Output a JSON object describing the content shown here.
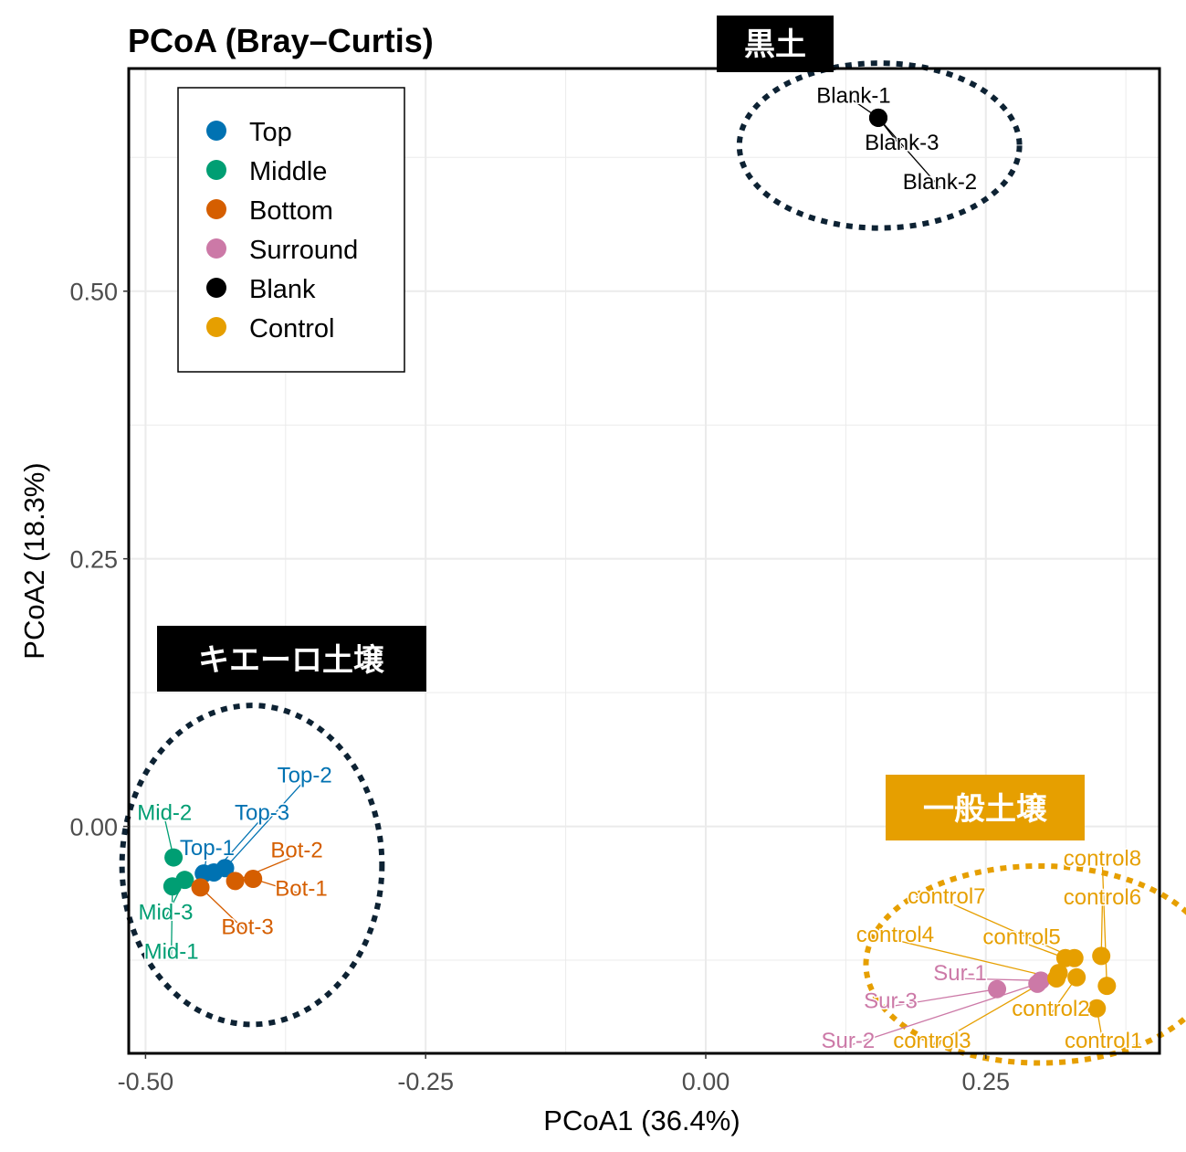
{
  "chart_data": {
    "type": "scatter",
    "title": "PCoA (Bray–Curtis)",
    "xlabel": "PCoA1 (36.4%)",
    "ylabel": "PCoA2 (18.3%)",
    "xlim": [
      -0.515,
      0.405
    ],
    "ylim": [
      -0.212,
      0.708
    ],
    "xticks": [
      -0.5,
      -0.25,
      0.0,
      0.25
    ],
    "xtick_labels": [
      "-0.50",
      "-0.25",
      "0.00",
      "0.25"
    ],
    "yticks": [
      0.0,
      0.25,
      0.5
    ],
    "ytick_labels": [
      "0.00",
      "0.25",
      "0.50"
    ],
    "grid": true,
    "legend": {
      "placement": "top-left",
      "entries": [
        {
          "name": "Top",
          "color": "#0072B2"
        },
        {
          "name": "Middle",
          "color": "#009E73"
        },
        {
          "name": "Bottom",
          "color": "#D55E00"
        },
        {
          "name": "Surround",
          "color": "#CC79A7"
        },
        {
          "name": "Blank",
          "color": "#000000"
        },
        {
          "name": "Control",
          "color": "#E69F00"
        }
      ]
    },
    "series": [
      {
        "name": "Top",
        "color": "#0072B2",
        "points": [
          {
            "label": "Top-1",
            "x": -0.448,
            "y": -0.044,
            "lx": -0.445,
            "ly": -0.02
          },
          {
            "label": "Top-2",
            "x": -0.429,
            "y": -0.039,
            "lx": -0.358,
            "ly": 0.048
          },
          {
            "label": "Top-3",
            "x": -0.439,
            "y": -0.043,
            "lx": -0.396,
            "ly": 0.013
          }
        ]
      },
      {
        "name": "Middle",
        "color": "#009E73",
        "points": [
          {
            "label": "Mid-1",
            "x": -0.476,
            "y": -0.056,
            "lx": -0.477,
            "ly": -0.117
          },
          {
            "label": "Mid-2",
            "x": -0.475,
            "y": -0.029,
            "lx": -0.483,
            "ly": 0.013
          },
          {
            "label": "Mid-3",
            "x": -0.465,
            "y": -0.05,
            "lx": -0.482,
            "ly": -0.08
          }
        ]
      },
      {
        "name": "Bottom",
        "color": "#D55E00",
        "points": [
          {
            "label": "Bot-1",
            "x": -0.404,
            "y": -0.049,
            "lx": -0.361,
            "ly": -0.058
          },
          {
            "label": "Bot-2",
            "x": -0.42,
            "y": -0.051,
            "lx": -0.365,
            "ly": -0.022
          },
          {
            "label": "Bot-3",
            "x": -0.451,
            "y": -0.057,
            "lx": -0.409,
            "ly": -0.094
          }
        ]
      },
      {
        "name": "Surround",
        "color": "#CC79A7",
        "points": [
          {
            "label": "Sur-1",
            "x": 0.299,
            "y": -0.144,
            "lx": 0.227,
            "ly": -0.137
          },
          {
            "label": "Sur-2",
            "x": 0.296,
            "y": -0.147,
            "lx": 0.127,
            "ly": -0.2
          },
          {
            "label": "Sur-3",
            "x": 0.26,
            "y": -0.152,
            "lx": 0.165,
            "ly": -0.163
          }
        ]
      },
      {
        "name": "Blank",
        "color": "#000000",
        "points": [
          {
            "label": "Blank-1",
            "x": 0.154,
            "y": 0.662,
            "lx": 0.132,
            "ly": 0.683
          },
          {
            "label": "Blank-2",
            "x": 0.154,
            "y": 0.662,
            "lx": 0.209,
            "ly": 0.602
          },
          {
            "label": "Blank-3",
            "x": 0.154,
            "y": 0.662,
            "lx": 0.175,
            "ly": 0.639
          }
        ]
      },
      {
        "name": "Control",
        "color": "#E69F00",
        "points": [
          {
            "label": "control1",
            "x": 0.349,
            "y": -0.17,
            "lx": 0.355,
            "ly": -0.2
          },
          {
            "label": "control2",
            "x": 0.331,
            "y": -0.141,
            "lx": 0.308,
            "ly": -0.17
          },
          {
            "label": "control3",
            "x": 0.315,
            "y": -0.137,
            "lx": 0.202,
            "ly": -0.2
          },
          {
            "label": "control4",
            "x": 0.313,
            "y": -0.142,
            "lx": 0.169,
            "ly": -0.101
          },
          {
            "label": "control5",
            "x": 0.321,
            "y": -0.123,
            "lx": 0.282,
            "ly": -0.103
          },
          {
            "label": "control6",
            "x": 0.353,
            "y": -0.121,
            "lx": 0.354,
            "ly": -0.066
          },
          {
            "label": "control7",
            "x": 0.329,
            "y": -0.123,
            "lx": 0.215,
            "ly": -0.065
          },
          {
            "label": "control8",
            "x": 0.358,
            "y": -0.149,
            "lx": 0.354,
            "ly": -0.03
          }
        ]
      }
    ],
    "annotations": [
      {
        "text": "黒土",
        "bg": "#000000",
        "fg": "#ffffff"
      },
      {
        "text": "キエーロ土壌",
        "bg": "#000000",
        "fg": "#ffffff"
      },
      {
        "text": "一般土壌",
        "bg": "#E69F00",
        "fg": "#ffffff"
      }
    ],
    "ellipses": [
      {
        "group": "Blank",
        "color": "#0d2233",
        "cx": 0.155,
        "cy": 0.636,
        "rx": 0.125,
        "ry": 0.077
      },
      {
        "group": "Top/Middle/Bottom",
        "color": "#0d2233",
        "cx": -0.405,
        "cy": -0.036,
        "rx": 0.116,
        "ry": 0.149
      },
      {
        "group": "Surround/Control",
        "color": "#E69F00",
        "cx": 0.298,
        "cy": -0.129,
        "rx": 0.155,
        "ry": 0.092
      }
    ]
  }
}
